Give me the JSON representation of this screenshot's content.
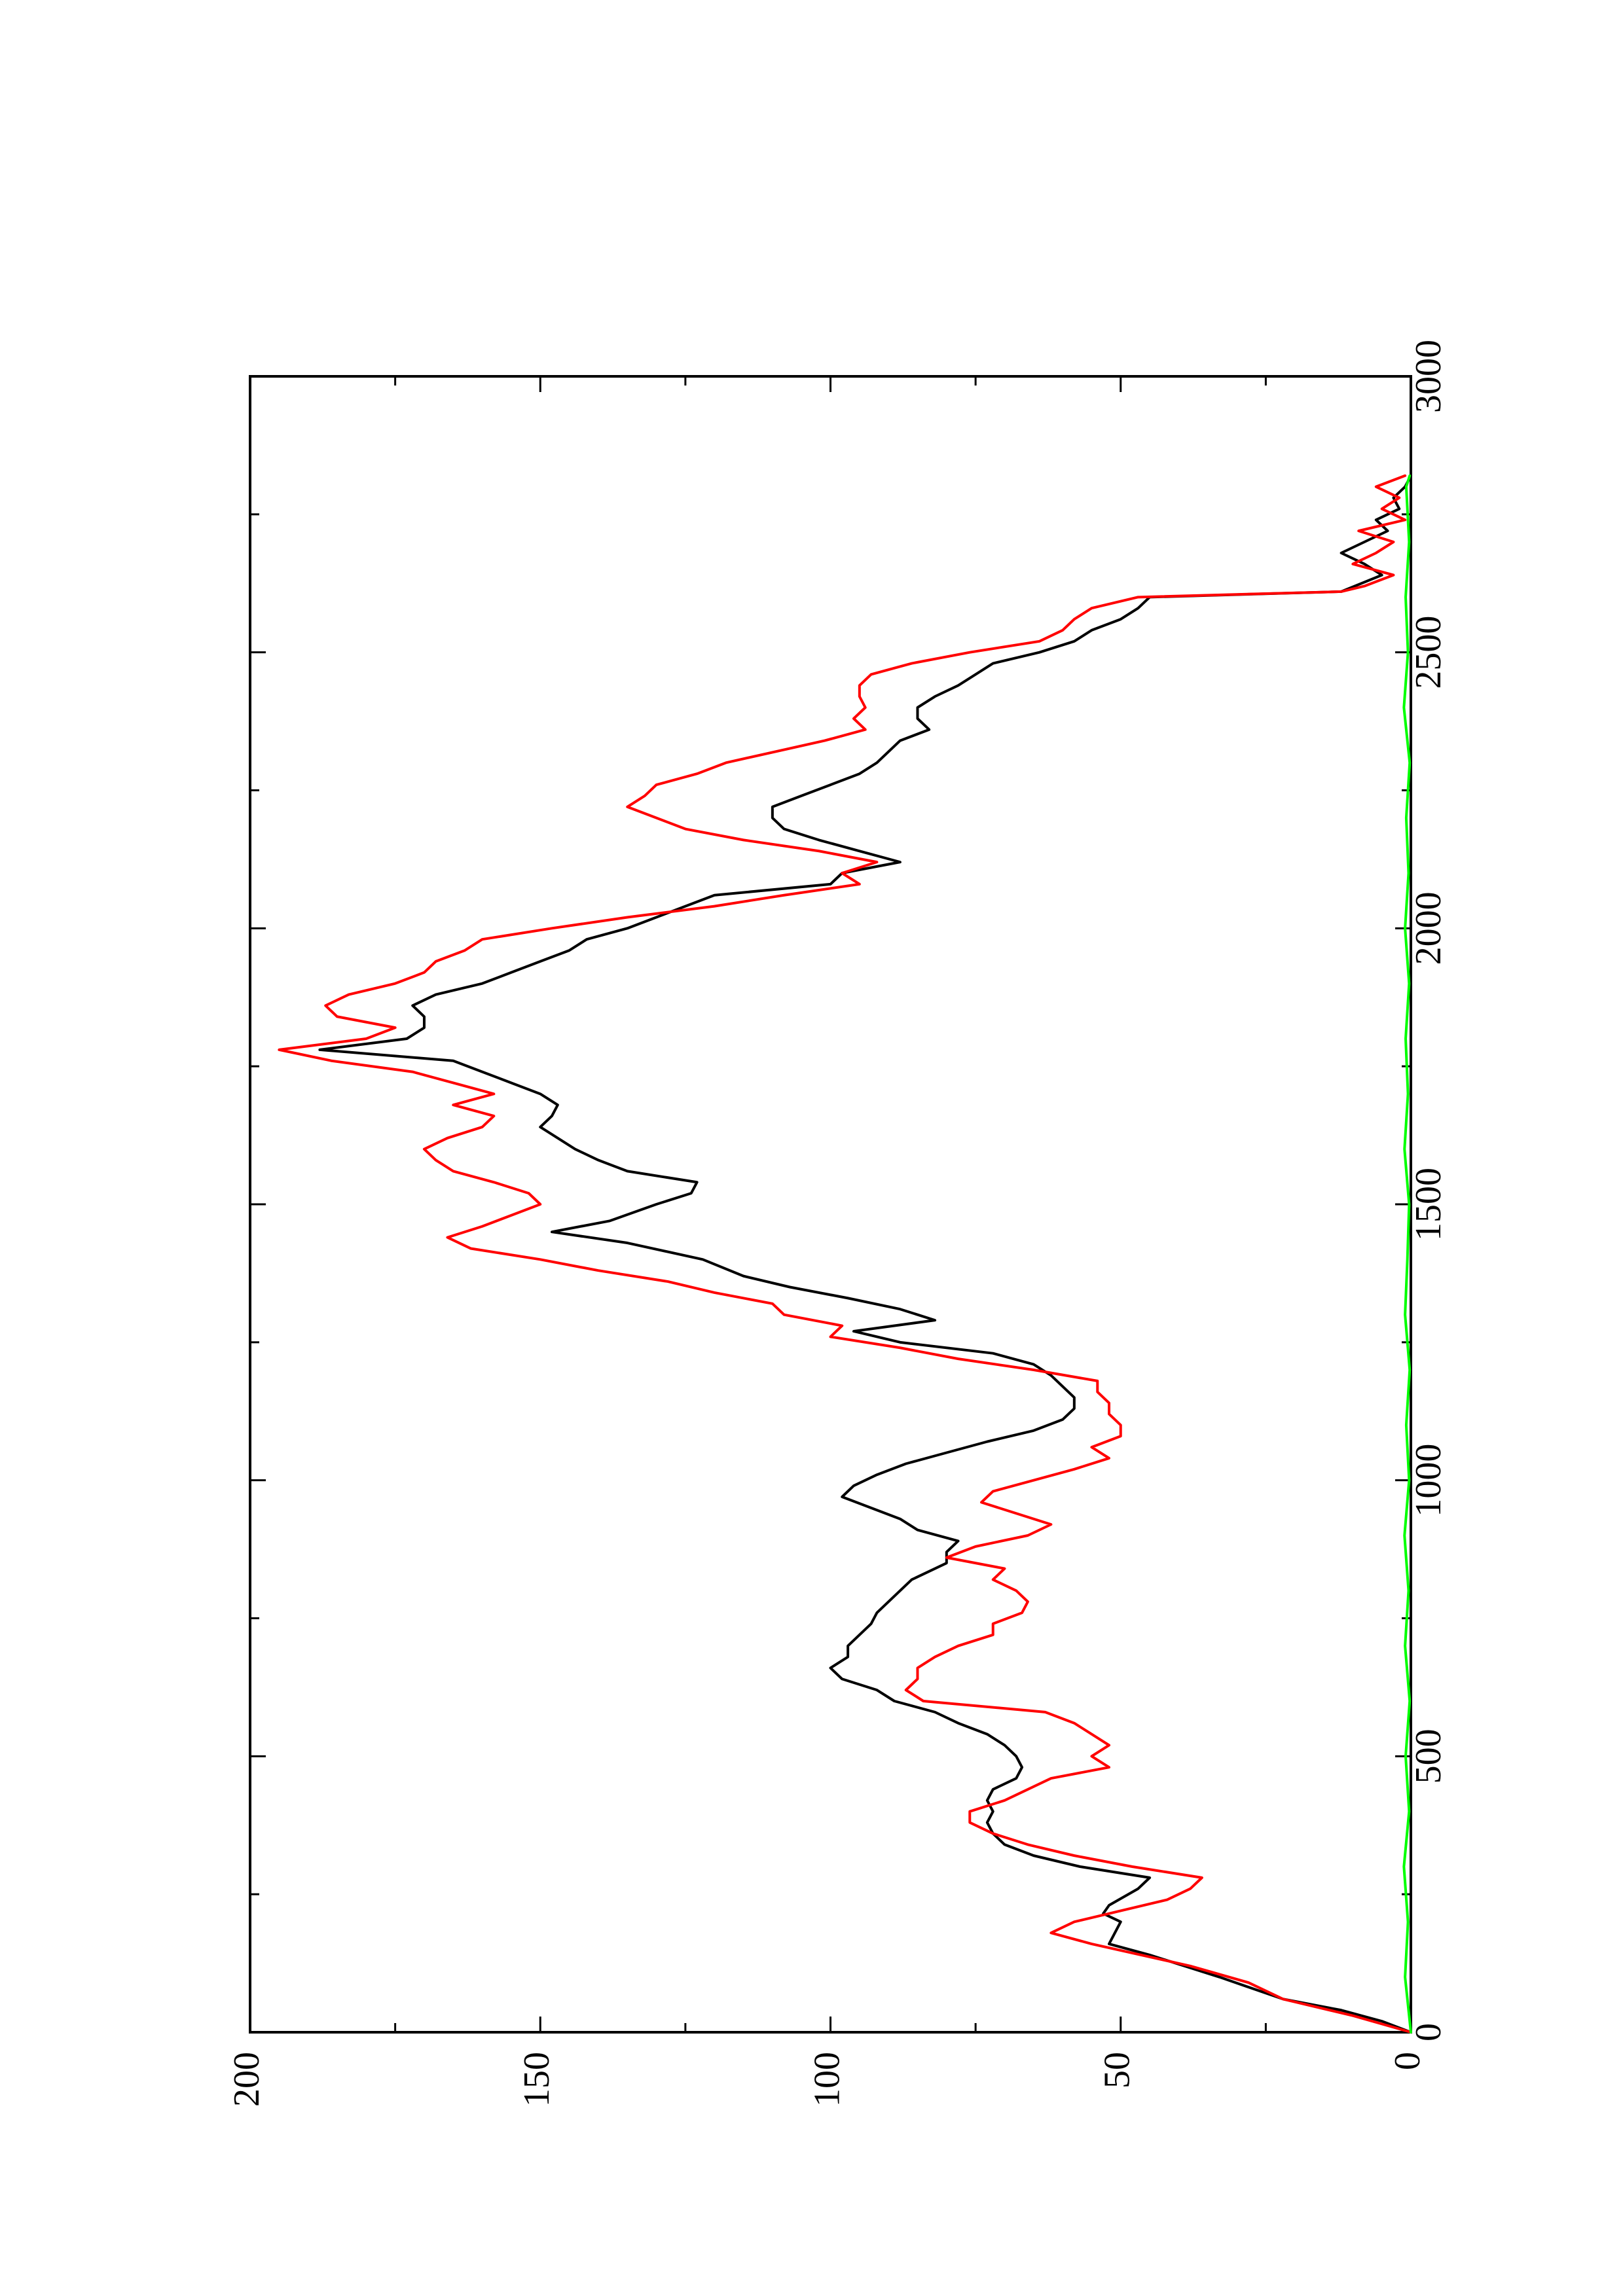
{
  "chart_data": {
    "type": "line",
    "orientation": "rotated-90-ccw",
    "title": "",
    "xlabel": "",
    "ylabel": "",
    "xlim": [
      0,
      3000
    ],
    "ylim": [
      0,
      200
    ],
    "x_ticks": [
      0,
      500,
      1000,
      1500,
      2000,
      2500,
      3000
    ],
    "y_ticks": [
      0,
      50,
      100,
      150,
      200
    ],
    "x_tick_labels": [
      "0",
      "500",
      "1000",
      "1500",
      "2000",
      "2500",
      "3000"
    ],
    "y_tick_labels": [
      "0",
      "50",
      "100",
      "150",
      "200"
    ],
    "grid": false,
    "legend": "none",
    "series": [
      {
        "color": "#000000",
        "points": [
          [
            0,
            0
          ],
          [
            20,
            5
          ],
          [
            40,
            12
          ],
          [
            60,
            22
          ],
          [
            100,
            33
          ],
          [
            140,
            45
          ],
          [
            160,
            52
          ],
          [
            180,
            51
          ],
          [
            200,
            50
          ],
          [
            215,
            53
          ],
          [
            230,
            52
          ],
          [
            260,
            47
          ],
          [
            280,
            45
          ],
          [
            300,
            57
          ],
          [
            320,
            65
          ],
          [
            340,
            70
          ],
          [
            360,
            72
          ],
          [
            380,
            73
          ],
          [
            400,
            72
          ],
          [
            420,
            73
          ],
          [
            440,
            72
          ],
          [
            460,
            68
          ],
          [
            480,
            67
          ],
          [
            500,
            68
          ],
          [
            520,
            70
          ],
          [
            540,
            73
          ],
          [
            560,
            78
          ],
          [
            580,
            82
          ],
          [
            600,
            89
          ],
          [
            620,
            92
          ],
          [
            640,
            98
          ],
          [
            660,
            100
          ],
          [
            680,
            97
          ],
          [
            700,
            97
          ],
          [
            720,
            95
          ],
          [
            740,
            93
          ],
          [
            760,
            92
          ],
          [
            780,
            90
          ],
          [
            800,
            88
          ],
          [
            820,
            86
          ],
          [
            850,
            80
          ],
          [
            870,
            80
          ],
          [
            890,
            78
          ],
          [
            910,
            85
          ],
          [
            930,
            88
          ],
          [
            950,
            93
          ],
          [
            970,
            98
          ],
          [
            990,
            96
          ],
          [
            1010,
            92
          ],
          [
            1030,
            87
          ],
          [
            1050,
            80
          ],
          [
            1070,
            73
          ],
          [
            1090,
            65
          ],
          [
            1110,
            60
          ],
          [
            1130,
            58
          ],
          [
            1150,
            58
          ],
          [
            1170,
            60
          ],
          [
            1190,
            62
          ],
          [
            1210,
            65
          ],
          [
            1230,
            72
          ],
          [
            1250,
            88
          ],
          [
            1270,
            96
          ],
          [
            1290,
            82
          ],
          [
            1310,
            88
          ],
          [
            1330,
            97
          ],
          [
            1350,
            107
          ],
          [
            1370,
            115
          ],
          [
            1400,
            122
          ],
          [
            1430,
            135
          ],
          [
            1450,
            148
          ],
          [
            1470,
            138
          ],
          [
            1500,
            130
          ],
          [
            1520,
            124
          ],
          [
            1540,
            123
          ],
          [
            1560,
            135
          ],
          [
            1580,
            140
          ],
          [
            1600,
            144
          ],
          [
            1620,
            147
          ],
          [
            1640,
            150
          ],
          [
            1660,
            148
          ],
          [
            1680,
            147
          ],
          [
            1700,
            150
          ],
          [
            1720,
            155
          ],
          [
            1740,
            160
          ],
          [
            1760,
            165
          ],
          [
            1780,
            188
          ],
          [
            1800,
            173
          ],
          [
            1820,
            170
          ],
          [
            1840,
            170
          ],
          [
            1860,
            172
          ],
          [
            1880,
            168
          ],
          [
            1900,
            160
          ],
          [
            1920,
            155
          ],
          [
            1940,
            150
          ],
          [
            1960,
            145
          ],
          [
            1980,
            142
          ],
          [
            2000,
            135
          ],
          [
            2020,
            130
          ],
          [
            2040,
            125
          ],
          [
            2060,
            120
          ],
          [
            2080,
            100
          ],
          [
            2100,
            98
          ],
          [
            2120,
            88
          ],
          [
            2140,
            95
          ],
          [
            2160,
            102
          ],
          [
            2180,
            108
          ],
          [
            2200,
            110
          ],
          [
            2220,
            110
          ],
          [
            2240,
            105
          ],
          [
            2260,
            100
          ],
          [
            2280,
            95
          ],
          [
            2300,
            92
          ],
          [
            2340,
            88
          ],
          [
            2360,
            83
          ],
          [
            2380,
            85
          ],
          [
            2400,
            85
          ],
          [
            2420,
            82
          ],
          [
            2440,
            78
          ],
          [
            2460,
            75
          ],
          [
            2480,
            72
          ],
          [
            2500,
            64
          ],
          [
            2520,
            58
          ],
          [
            2540,
            55
          ],
          [
            2560,
            50
          ],
          [
            2580,
            47
          ],
          [
            2600,
            45
          ],
          [
            2610,
            12
          ],
          [
            2640,
            5
          ],
          [
            2660,
            8
          ],
          [
            2680,
            12
          ],
          [
            2700,
            8
          ],
          [
            2720,
            4
          ],
          [
            2740,
            6
          ],
          [
            2760,
            2
          ],
          [
            2780,
            3
          ],
          [
            2800,
            1
          ],
          [
            2820,
            0
          ]
        ]
      },
      {
        "color": "#ff0000",
        "points": [
          [
            0,
            0
          ],
          [
            30,
            10
          ],
          [
            60,
            22
          ],
          [
            90,
            28
          ],
          [
            120,
            38
          ],
          [
            160,
            55
          ],
          [
            180,
            62
          ],
          [
            200,
            58
          ],
          [
            220,
            50
          ],
          [
            240,
            42
          ],
          [
            260,
            38
          ],
          [
            280,
            36
          ],
          [
            300,
            48
          ],
          [
            320,
            58
          ],
          [
            340,
            66
          ],
          [
            360,
            72
          ],
          [
            380,
            76
          ],
          [
            400,
            76
          ],
          [
            420,
            70
          ],
          [
            440,
            66
          ],
          [
            460,
            62
          ],
          [
            480,
            52
          ],
          [
            500,
            55
          ],
          [
            520,
            52
          ],
          [
            540,
            55
          ],
          [
            560,
            58
          ],
          [
            580,
            63
          ],
          [
            600,
            84
          ],
          [
            620,
            87
          ],
          [
            640,
            85
          ],
          [
            660,
            85
          ],
          [
            680,
            82
          ],
          [
            700,
            78
          ],
          [
            720,
            72
          ],
          [
            740,
            72
          ],
          [
            760,
            67
          ],
          [
            780,
            66
          ],
          [
            800,
            68
          ],
          [
            820,
            72
          ],
          [
            840,
            70
          ],
          [
            860,
            80
          ],
          [
            880,
            75
          ],
          [
            900,
            66
          ],
          [
            920,
            62
          ],
          [
            940,
            68
          ],
          [
            960,
            74
          ],
          [
            980,
            72
          ],
          [
            1000,
            65
          ],
          [
            1020,
            58
          ],
          [
            1040,
            52
          ],
          [
            1060,
            55
          ],
          [
            1080,
            50
          ],
          [
            1100,
            50
          ],
          [
            1120,
            52
          ],
          [
            1140,
            52
          ],
          [
            1160,
            54
          ],
          [
            1180,
            54
          ],
          [
            1200,
            65
          ],
          [
            1220,
            78
          ],
          [
            1240,
            88
          ],
          [
            1260,
            100
          ],
          [
            1280,
            98
          ],
          [
            1300,
            108
          ],
          [
            1320,
            110
          ],
          [
            1340,
            120
          ],
          [
            1360,
            128
          ],
          [
            1380,
            140
          ],
          [
            1400,
            150
          ],
          [
            1420,
            162
          ],
          [
            1440,
            166
          ],
          [
            1460,
            160
          ],
          [
            1480,
            155
          ],
          [
            1500,
            150
          ],
          [
            1520,
            152
          ],
          [
            1540,
            158
          ],
          [
            1560,
            165
          ],
          [
            1580,
            168
          ],
          [
            1600,
            170
          ],
          [
            1620,
            166
          ],
          [
            1640,
            160
          ],
          [
            1660,
            158
          ],
          [
            1680,
            165
          ],
          [
            1700,
            158
          ],
          [
            1720,
            165
          ],
          [
            1740,
            172
          ],
          [
            1760,
            186
          ],
          [
            1780,
            195
          ],
          [
            1800,
            180
          ],
          [
            1820,
            175
          ],
          [
            1840,
            185
          ],
          [
            1860,
            187
          ],
          [
            1880,
            183
          ],
          [
            1900,
            175
          ],
          [
            1920,
            170
          ],
          [
            1940,
            168
          ],
          [
            1960,
            163
          ],
          [
            1980,
            160
          ],
          [
            2000,
            148
          ],
          [
            2020,
            135
          ],
          [
            2040,
            120
          ],
          [
            2060,
            108
          ],
          [
            2080,
            95
          ],
          [
            2100,
            98
          ],
          [
            2120,
            92
          ],
          [
            2140,
            102
          ],
          [
            2160,
            115
          ],
          [
            2180,
            125
          ],
          [
            2200,
            130
          ],
          [
            2220,
            135
          ],
          [
            2240,
            132
          ],
          [
            2260,
            130
          ],
          [
            2280,
            123
          ],
          [
            2300,
            118
          ],
          [
            2340,
            101
          ],
          [
            2360,
            94
          ],
          [
            2380,
            96
          ],
          [
            2400,
            94
          ],
          [
            2420,
            95
          ],
          [
            2440,
            95
          ],
          [
            2460,
            93
          ],
          [
            2480,
            86
          ],
          [
            2500,
            76
          ],
          [
            2520,
            64
          ],
          [
            2540,
            60
          ],
          [
            2560,
            58
          ],
          [
            2580,
            55
          ],
          [
            2600,
            47
          ],
          [
            2610,
            12
          ],
          [
            2620,
            8
          ],
          [
            2640,
            3
          ],
          [
            2660,
            10
          ],
          [
            2680,
            6
          ],
          [
            2700,
            3
          ],
          [
            2720,
            9
          ],
          [
            2740,
            1
          ],
          [
            2760,
            5
          ],
          [
            2780,
            2
          ],
          [
            2800,
            6
          ],
          [
            2820,
            1
          ]
        ]
      },
      {
        "color": "#00ff00",
        "points": [
          [
            0,
            0
          ],
          [
            100,
            1
          ],
          [
            200,
            0.5
          ],
          [
            300,
            1.2
          ],
          [
            400,
            0.3
          ],
          [
            500,
            0.9
          ],
          [
            600,
            0.2
          ],
          [
            700,
            1
          ],
          [
            800,
            0.4
          ],
          [
            900,
            1.1
          ],
          [
            1000,
            0.3
          ],
          [
            1100,
            0.8
          ],
          [
            1200,
            0.2
          ],
          [
            1300,
            1
          ],
          [
            1400,
            0.6
          ],
          [
            1500,
            0.3
          ],
          [
            1600,
            1.1
          ],
          [
            1700,
            0.5
          ],
          [
            1800,
            0.9
          ],
          [
            1900,
            0.3
          ],
          [
            2000,
            1
          ],
          [
            2100,
            0.4
          ],
          [
            2200,
            0.8
          ],
          [
            2300,
            0.2
          ],
          [
            2400,
            1.2
          ],
          [
            2500,
            0.5
          ],
          [
            2600,
            0.9
          ],
          [
            2700,
            0.3
          ],
          [
            2800,
            0.8
          ],
          [
            2820,
            0.2
          ]
        ]
      }
    ]
  }
}
